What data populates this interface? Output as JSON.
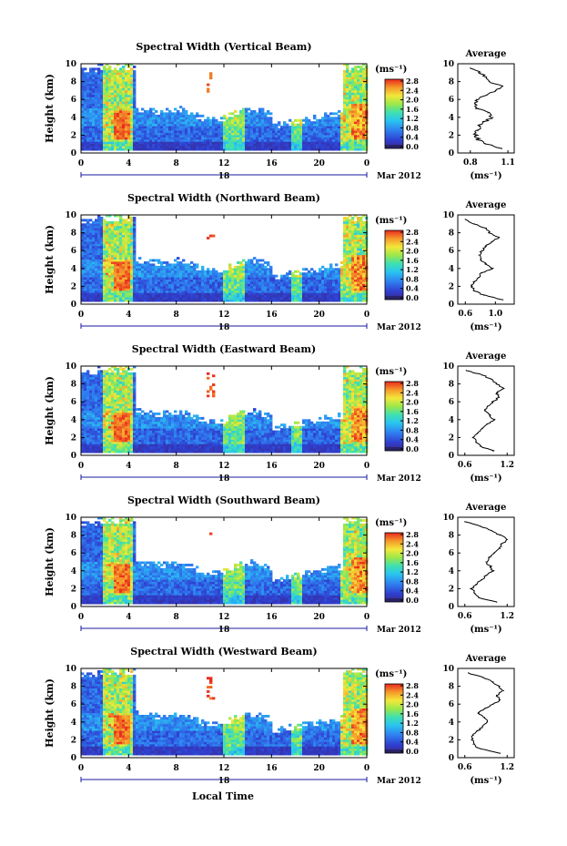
{
  "figure": {
    "xlabel": "Local Time",
    "date_label": "Mar 2012",
    "day_label": "18",
    "unit_label": "(ms⁻¹)",
    "avg_title": "Average",
    "avg_xlabel": "(ms⁻¹)",
    "colorbar_ticks": [
      "0.0",
      "0.4",
      "0.8",
      "1.2",
      "1.6",
      "2.0",
      "2.4",
      "2.8"
    ]
  },
  "chart_data": [
    {
      "type": "heatmap",
      "title": "Spectral Width (Vertical Beam)",
      "ylabel": "Height (km)",
      "x_ticks": [
        "0",
        "4",
        "8",
        "12",
        "16",
        "20",
        "0"
      ],
      "y_ticks": [
        "0",
        "2",
        "4",
        "6",
        "8",
        "10"
      ],
      "xlim": [
        0,
        24
      ],
      "ylim": [
        0,
        10
      ],
      "colorbar": {
        "min": 0.0,
        "max": 3.0
      },
      "average": {
        "type": "line",
        "title": "Average",
        "x_ticks": [
          "0.8",
          "1.1"
        ],
        "xlim": [
          0.7,
          1.15
        ],
        "height": [
          0.5,
          1,
          1.5,
          2,
          2.5,
          3,
          3.5,
          4,
          4.5,
          5,
          5.5,
          6,
          6.5,
          7,
          7.5,
          8,
          8.5,
          9,
          9.5
        ],
        "values": [
          1.05,
          0.92,
          0.86,
          0.84,
          0.86,
          0.87,
          0.91,
          0.98,
          0.94,
          0.86,
          0.84,
          0.85,
          0.93,
          1.0,
          1.06,
          0.95,
          0.93,
          0.88,
          0.8
        ]
      }
    },
    {
      "type": "heatmap",
      "title": "Spectral Width (Northward Beam)",
      "ylabel": "Height (km)",
      "x_ticks": [
        "0",
        "4",
        "8",
        "12",
        "16",
        "20",
        "0"
      ],
      "y_ticks": [
        "0",
        "2",
        "4",
        "6",
        "8",
        "10"
      ],
      "xlim": [
        0,
        24
      ],
      "ylim": [
        0,
        10
      ],
      "colorbar": {
        "min": 0.0,
        "max": 3.0
      },
      "average": {
        "type": "line",
        "title": "Average",
        "x_ticks": [
          "0.6",
          "1.0"
        ],
        "xlim": [
          0.5,
          1.25
        ],
        "height": [
          0.5,
          1,
          1.5,
          2,
          2.5,
          3,
          3.5,
          4,
          4.5,
          5,
          5.5,
          6,
          6.5,
          7,
          7.5,
          8,
          8.5,
          9,
          9.5
        ],
        "values": [
          1.1,
          0.85,
          0.72,
          0.68,
          0.72,
          0.78,
          0.82,
          0.95,
          0.88,
          0.8,
          0.78,
          0.82,
          0.88,
          0.95,
          1.05,
          0.92,
          0.88,
          0.72,
          0.6
        ]
      }
    },
    {
      "type": "heatmap",
      "title": "Spectral Width (Eastward Beam)",
      "ylabel": "Height (km)",
      "x_ticks": [
        "0",
        "4",
        "8",
        "12",
        "16",
        "20",
        "0"
      ],
      "y_ticks": [
        "0",
        "2",
        "4",
        "6",
        "8",
        "10"
      ],
      "xlim": [
        0,
        24
      ],
      "ylim": [
        0,
        10
      ],
      "colorbar": {
        "min": 0.0,
        "max": 3.0
      },
      "average": {
        "type": "line",
        "title": "Average",
        "x_ticks": [
          "0.6",
          "1.2"
        ],
        "xlim": [
          0.5,
          1.3
        ],
        "height": [
          0.5,
          1,
          1.5,
          2,
          2.5,
          3,
          3.5,
          4,
          4.5,
          5,
          5.5,
          6,
          6.5,
          7,
          7.5,
          8,
          8.5,
          9,
          9.5
        ],
        "values": [
          1.0,
          0.82,
          0.76,
          0.72,
          0.78,
          0.85,
          0.92,
          1.02,
          0.95,
          0.88,
          0.92,
          1.0,
          1.08,
          1.05,
          1.15,
          1.05,
          0.98,
          0.85,
          0.62
        ]
      }
    },
    {
      "type": "heatmap",
      "title": "Spectral Width (Southward Beam)",
      "ylabel": "Height (km)",
      "x_ticks": [
        "0",
        "4",
        "8",
        "12",
        "16",
        "20",
        "0"
      ],
      "y_ticks": [
        "0",
        "2",
        "4",
        "6",
        "8",
        "10"
      ],
      "xlim": [
        0,
        24
      ],
      "ylim": [
        0,
        10
      ],
      "colorbar": {
        "min": 0.0,
        "max": 3.0
      },
      "average": {
        "type": "line",
        "title": "Average",
        "x_ticks": [
          "0.6",
          "1.2"
        ],
        "xlim": [
          0.5,
          1.3
        ],
        "height": [
          0.5,
          1,
          1.5,
          2,
          2.5,
          3,
          3.5,
          4,
          4.5,
          5,
          5.5,
          6,
          6.5,
          7,
          7.5,
          8,
          8.5,
          9,
          9.5
        ],
        "values": [
          1.05,
          0.8,
          0.74,
          0.7,
          0.76,
          0.84,
          0.9,
          1.0,
          0.96,
          0.9,
          0.95,
          1.02,
          1.1,
          1.12,
          1.2,
          1.1,
          0.98,
          0.82,
          0.6
        ]
      }
    },
    {
      "type": "heatmap",
      "title": "Spectral Width (Westward Beam)",
      "ylabel": "Height (km)",
      "x_ticks": [
        "0",
        "4",
        "8",
        "12",
        "16",
        "20",
        "0"
      ],
      "y_ticks": [
        "0",
        "2",
        "4",
        "6",
        "8",
        "10"
      ],
      "xlim": [
        0,
        24
      ],
      "ylim": [
        0,
        10
      ],
      "colorbar": {
        "min": 0.0,
        "max": 3.0
      },
      "average": {
        "type": "line",
        "title": "Average",
        "x_ticks": [
          "0.6",
          "1.2"
        ],
        "xlim": [
          0.5,
          1.3
        ],
        "height": [
          0.5,
          1,
          1.5,
          2,
          2.5,
          3,
          3.5,
          4,
          4.5,
          5,
          5.5,
          6,
          6.5,
          7,
          7.5,
          8,
          8.5,
          9,
          9.5
        ],
        "values": [
          1.1,
          0.82,
          0.72,
          0.7,
          0.72,
          0.78,
          0.85,
          0.92,
          0.88,
          0.8,
          0.88,
          1.0,
          1.1,
          1.05,
          1.15,
          1.08,
          1.0,
          0.85,
          0.65
        ]
      }
    }
  ]
}
